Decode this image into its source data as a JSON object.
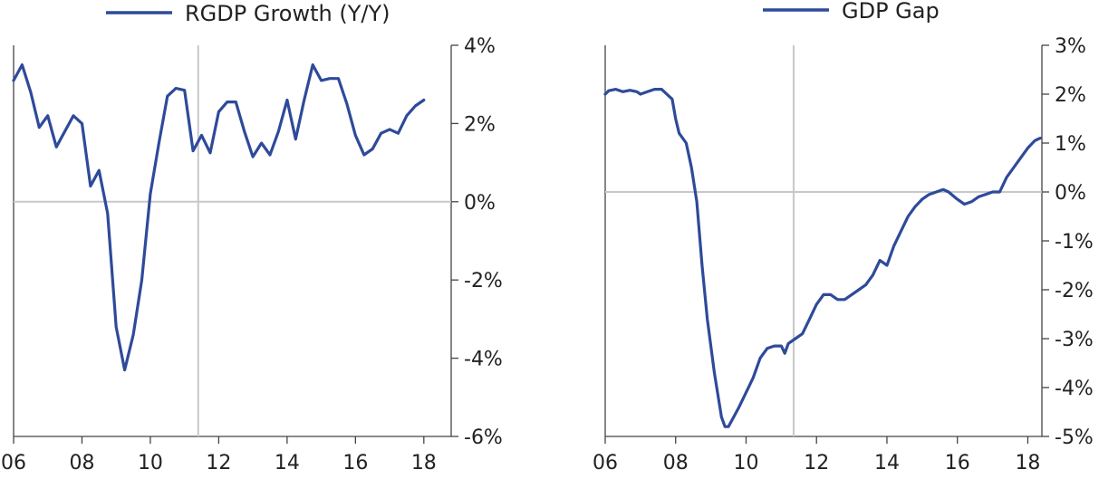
{
  "chart_data": [
    {
      "type": "line",
      "color": "#2e4a9a",
      "legend_position": "top",
      "grid": false,
      "series": [
        {
          "name": "RGDP Growth (Y/Y)",
          "points": [
            [
              2006.0,
              3.1
            ],
            [
              2006.25,
              3.5
            ],
            [
              2006.5,
              2.8
            ],
            [
              2006.75,
              1.9
            ],
            [
              2007.0,
              2.2
            ],
            [
              2007.25,
              1.4
            ],
            [
              2007.5,
              1.8
            ],
            [
              2007.75,
              2.2
            ],
            [
              2008.0,
              2.0
            ],
            [
              2008.25,
              0.4
            ],
            [
              2008.5,
              0.8
            ],
            [
              2008.75,
              -0.3
            ],
            [
              2009.0,
              -3.2
            ],
            [
              2009.25,
              -4.3
            ],
            [
              2009.5,
              -3.4
            ],
            [
              2009.75,
              -2.0
            ],
            [
              2010.0,
              0.2
            ],
            [
              2010.25,
              1.5
            ],
            [
              2010.5,
              2.7
            ],
            [
              2010.75,
              2.9
            ],
            [
              2011.0,
              2.85
            ],
            [
              2011.25,
              1.3
            ],
            [
              2011.5,
              1.7
            ],
            [
              2011.75,
              1.25
            ],
            [
              2012.0,
              2.3
            ],
            [
              2012.25,
              2.55
            ],
            [
              2012.5,
              2.55
            ],
            [
              2012.75,
              1.8
            ],
            [
              2013.0,
              1.15
            ],
            [
              2013.25,
              1.5
            ],
            [
              2013.5,
              1.2
            ],
            [
              2013.75,
              1.8
            ],
            [
              2014.0,
              2.6
            ],
            [
              2014.25,
              1.6
            ],
            [
              2014.5,
              2.6
            ],
            [
              2014.75,
              3.5
            ],
            [
              2015.0,
              3.1
            ],
            [
              2015.25,
              3.15
            ],
            [
              2015.5,
              3.15
            ],
            [
              2015.75,
              2.5
            ],
            [
              2016.0,
              1.7
            ],
            [
              2016.25,
              1.2
            ],
            [
              2016.5,
              1.35
            ],
            [
              2016.75,
              1.75
            ],
            [
              2017.0,
              1.85
            ],
            [
              2017.25,
              1.75
            ],
            [
              2017.5,
              2.2
            ],
            [
              2017.75,
              2.45
            ],
            [
              2018.0,
              2.6
            ]
          ]
        }
      ],
      "xlim": [
        2006,
        2018.8
      ],
      "ylim": [
        -6,
        4
      ],
      "x_ticks": [
        {
          "v": 2006,
          "label": "06"
        },
        {
          "v": 2008,
          "label": "08"
        },
        {
          "v": 2010,
          "label": "10"
        },
        {
          "v": 2012,
          "label": "12"
        },
        {
          "v": 2014,
          "label": "14"
        },
        {
          "v": 2016,
          "label": "16"
        },
        {
          "v": 2018,
          "label": "18"
        }
      ],
      "y_ticks": [
        {
          "v": 4,
          "label": "4%"
        },
        {
          "v": 2,
          "label": "2%"
        },
        {
          "v": 0,
          "label": "0%"
        },
        {
          "v": -2,
          "label": "-2%"
        },
        {
          "v": -4,
          "label": "-4%"
        },
        {
          "v": -6,
          "label": "-6%"
        }
      ],
      "reference_lines": {
        "x": 2011.4,
        "y": 0
      }
    },
    {
      "type": "line",
      "color": "#2e4a9a",
      "legend_position": "top",
      "grid": false,
      "series": [
        {
          "name": "GDP Gap",
          "points": [
            [
              2006.0,
              2.0
            ],
            [
              2006.1,
              2.07
            ],
            [
              2006.3,
              2.1
            ],
            [
              2006.5,
              2.05
            ],
            [
              2006.7,
              2.08
            ],
            [
              2006.9,
              2.05
            ],
            [
              2007.0,
              2.0
            ],
            [
              2007.2,
              2.05
            ],
            [
              2007.4,
              2.1
            ],
            [
              2007.6,
              2.1
            ],
            [
              2007.75,
              2.0
            ],
            [
              2007.9,
              1.9
            ],
            [
              2008.0,
              1.5
            ],
            [
              2008.1,
              1.2
            ],
            [
              2008.3,
              1.0
            ],
            [
              2008.45,
              0.5
            ],
            [
              2008.6,
              -0.2
            ],
            [
              2008.75,
              -1.5
            ],
            [
              2008.9,
              -2.6
            ],
            [
              2009.1,
              -3.7
            ],
            [
              2009.3,
              -4.6
            ],
            [
              2009.4,
              -4.8
            ],
            [
              2009.5,
              -4.8
            ],
            [
              2009.65,
              -4.6
            ],
            [
              2009.8,
              -4.4
            ],
            [
              2010.0,
              -4.1
            ],
            [
              2010.2,
              -3.8
            ],
            [
              2010.4,
              -3.4
            ],
            [
              2010.6,
              -3.2
            ],
            [
              2010.8,
              -3.15
            ],
            [
              2011.0,
              -3.15
            ],
            [
              2011.1,
              -3.3
            ],
            [
              2011.2,
              -3.1
            ],
            [
              2011.4,
              -3.0
            ],
            [
              2011.6,
              -2.9
            ],
            [
              2011.8,
              -2.6
            ],
            [
              2012.0,
              -2.3
            ],
            [
              2012.2,
              -2.1
            ],
            [
              2012.4,
              -2.1
            ],
            [
              2012.6,
              -2.2
            ],
            [
              2012.8,
              -2.2
            ],
            [
              2013.0,
              -2.1
            ],
            [
              2013.2,
              -2.0
            ],
            [
              2013.4,
              -1.9
            ],
            [
              2013.6,
              -1.7
            ],
            [
              2013.8,
              -1.4
            ],
            [
              2014.0,
              -1.5
            ],
            [
              2014.2,
              -1.1
            ],
            [
              2014.4,
              -0.8
            ],
            [
              2014.6,
              -0.5
            ],
            [
              2014.8,
              -0.3
            ],
            [
              2015.0,
              -0.15
            ],
            [
              2015.2,
              -0.05
            ],
            [
              2015.4,
              0.0
            ],
            [
              2015.6,
              0.05
            ],
            [
              2015.75,
              0.0
            ],
            [
              2016.0,
              -0.15
            ],
            [
              2016.2,
              -0.25
            ],
            [
              2016.4,
              -0.2
            ],
            [
              2016.6,
              -0.1
            ],
            [
              2016.8,
              -0.05
            ],
            [
              2017.0,
              0.0
            ],
            [
              2017.2,
              0.0
            ],
            [
              2017.4,
              0.3
            ],
            [
              2017.6,
              0.5
            ],
            [
              2017.8,
              0.7
            ],
            [
              2018.0,
              0.9
            ],
            [
              2018.2,
              1.05
            ],
            [
              2018.35,
              1.1
            ]
          ]
        }
      ],
      "xlim": [
        2006,
        2018.4
      ],
      "ylim": [
        -5,
        3
      ],
      "x_ticks": [
        {
          "v": 2006,
          "label": "06"
        },
        {
          "v": 2008,
          "label": "08"
        },
        {
          "v": 2010,
          "label": "10"
        },
        {
          "v": 2012,
          "label": "12"
        },
        {
          "v": 2014,
          "label": "14"
        },
        {
          "v": 2016,
          "label": "16"
        },
        {
          "v": 2018,
          "label": "18"
        }
      ],
      "y_ticks": [
        {
          "v": 3,
          "label": "3%"
        },
        {
          "v": 2,
          "label": "2%"
        },
        {
          "v": 1,
          "label": "1%"
        },
        {
          "v": 0,
          "label": "0%"
        },
        {
          "v": -1,
          "label": "-1%"
        },
        {
          "v": -2,
          "label": "-2%"
        },
        {
          "v": -3,
          "label": "-3%"
        },
        {
          "v": -4,
          "label": "-4%"
        },
        {
          "v": -5,
          "label": "-5%"
        }
      ],
      "reference_lines": {
        "x": 2011.35,
        "y": 0
      }
    }
  ]
}
